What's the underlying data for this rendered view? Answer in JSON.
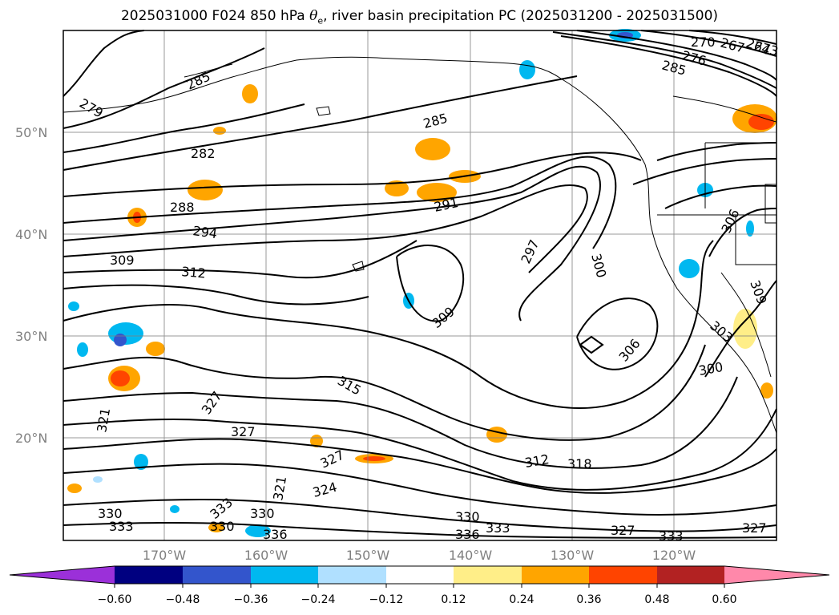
{
  "title": {
    "prefix": "2025031000 F024 850 hPa ",
    "theta_symbol": "θ",
    "theta_subscript": "e",
    "suffix": ", river basin precipitation PC (2025031200 - 2025031500)"
  },
  "map": {
    "lat_labels": [
      "50°N",
      "40°N",
      "30°N",
      "20°N"
    ],
    "lon_labels": [
      "170°W",
      "160°W",
      "150°W",
      "140°W",
      "130°W",
      "120°W"
    ],
    "contour_labels": [
      "264",
      "267",
      "270",
      "273",
      "276",
      "279",
      "282",
      "285",
      "288",
      "291",
      "294",
      "297",
      "300",
      "303",
      "306",
      "309",
      "312",
      "315",
      "318",
      "321",
      "324",
      "327",
      "330",
      "333",
      "336"
    ],
    "colors": {
      "land_line": "#000000",
      "grid": "#808080"
    }
  },
  "colorbar": {
    "ticks": [
      "−0.60",
      "−0.48",
      "−0.36",
      "−0.24",
      "−0.12",
      "0.12",
      "0.24",
      "0.36",
      "0.48",
      "0.60"
    ],
    "colors": [
      "#9b30d9",
      "#000080",
      "#3355cc",
      "#00b8f0",
      "#b0e0ff",
      "#ffffff",
      "#ffee88",
      "#ffa500",
      "#ff4400",
      "#b22222",
      "#ff88aa"
    ]
  }
}
